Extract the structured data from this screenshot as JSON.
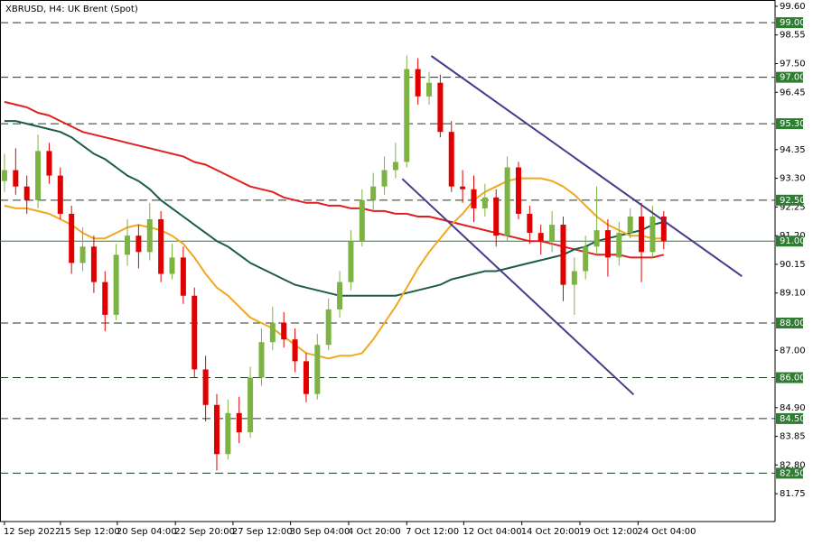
{
  "chart_data": {
    "type": "candlestick",
    "title": "XBRUSD, H4:  UK Brent (Spot)",
    "x": [
      0,
      1,
      2,
      3,
      4,
      5,
      6,
      7,
      8,
      9,
      10,
      11,
      12,
      13,
      14,
      15,
      16,
      17,
      18,
      19,
      20,
      21,
      22,
      23,
      24,
      25,
      26,
      27,
      28,
      29,
      30,
      31,
      32,
      33,
      34,
      35,
      36,
      37,
      38,
      39,
      40,
      41,
      42,
      43,
      44,
      45,
      46,
      47,
      48,
      49,
      50,
      51,
      52,
      53,
      54,
      55,
      56,
      57,
      58,
      59
    ],
    "open": [
      93.2,
      93.6,
      93.0,
      92.5,
      94.3,
      93.4,
      92.0,
      90.2,
      90.8,
      89.5,
      88.3,
      90.5,
      91.2,
      90.6,
      91.8,
      89.8,
      90.4,
      89.0,
      86.3,
      85.0,
      83.2,
      84.7,
      84.0,
      86.0,
      87.3,
      88.0,
      87.4,
      86.6,
      85.4,
      87.2,
      88.5,
      89.5,
      91.0,
      92.5,
      93.0,
      93.6,
      93.9,
      97.3,
      96.3,
      96.8,
      95.0,
      93.0,
      92.9,
      92.2,
      92.6,
      91.2,
      93.7,
      92.0,
      91.3,
      91.0,
      91.6,
      89.4,
      89.9,
      90.8,
      91.4,
      90.4,
      91.3,
      91.9,
      90.6,
      91.9
    ],
    "high": [
      94.2,
      94.4,
      93.4,
      94.9,
      94.6,
      93.7,
      92.3,
      91.5,
      91.2,
      89.9,
      90.9,
      91.8,
      91.6,
      92.4,
      92.1,
      90.9,
      90.8,
      89.3,
      86.8,
      85.4,
      85.2,
      85.3,
      86.4,
      87.8,
      88.6,
      88.4,
      87.8,
      86.9,
      87.6,
      88.9,
      89.9,
      91.4,
      92.9,
      93.5,
      94.1,
      94.6,
      97.8,
      97.7,
      97.2,
      97.1,
      95.4,
      93.6,
      93.4,
      93.1,
      92.9,
      94.1,
      93.9,
      92.3,
      91.6,
      92.1,
      91.9,
      90.4,
      91.2,
      93.0,
      91.8,
      91.7,
      92.2,
      92.4,
      92.3,
      92.1
    ],
    "low": [
      92.8,
      92.7,
      92.0,
      92.2,
      93.1,
      91.8,
      89.8,
      89.9,
      89.1,
      87.7,
      88.1,
      90.1,
      90.0,
      90.3,
      89.5,
      89.6,
      88.7,
      86.0,
      84.4,
      82.6,
      83.0,
      83.6,
      83.8,
      85.7,
      87.0,
      87.1,
      86.2,
      85.1,
      85.2,
      87.0,
      88.2,
      89.2,
      90.8,
      92.1,
      92.7,
      93.3,
      93.7,
      96.0,
      96.0,
      94.8,
      92.8,
      92.4,
      91.7,
      91.9,
      90.8,
      91.0,
      91.8,
      90.9,
      90.5,
      90.6,
      88.8,
      88.3,
      89.6,
      90.5,
      89.7,
      90.1,
      91.1,
      89.5,
      90.4,
      90.7
    ],
    "close": [
      93.6,
      93.0,
      92.5,
      94.3,
      93.4,
      92.0,
      90.2,
      90.8,
      89.5,
      88.3,
      90.5,
      91.2,
      90.6,
      91.8,
      89.8,
      90.4,
      89.0,
      86.3,
      85.0,
      83.2,
      84.7,
      84.0,
      86.0,
      87.3,
      88.0,
      87.4,
      86.6,
      85.4,
      87.2,
      88.5,
      89.5,
      91.0,
      92.5,
      93.0,
      93.6,
      93.9,
      97.3,
      96.3,
      96.8,
      95.0,
      93.0,
      92.9,
      92.2,
      92.6,
      91.2,
      93.7,
      92.0,
      91.3,
      91.0,
      91.6,
      89.4,
      89.9,
      90.8,
      91.4,
      90.4,
      91.3,
      91.9,
      90.6,
      91.9,
      91.0
    ],
    "up_color": "#7cb342",
    "down_color": "#e00000",
    "series": [
      {
        "color": "#e02020",
        "values": [
          96.1,
          96.0,
          95.9,
          95.7,
          95.6,
          95.4,
          95.2,
          95.0,
          94.9,
          94.8,
          94.7,
          94.6,
          94.5,
          94.4,
          94.3,
          94.2,
          94.1,
          93.9,
          93.8,
          93.6,
          93.4,
          93.2,
          93.0,
          92.9,
          92.8,
          92.6,
          92.5,
          92.4,
          92.4,
          92.3,
          92.3,
          92.2,
          92.2,
          92.1,
          92.1,
          92.0,
          92.0,
          91.9,
          91.9,
          91.8,
          91.7,
          91.6,
          91.5,
          91.4,
          91.3,
          91.2,
          91.1,
          91.0,
          91.0,
          90.9,
          90.8,
          90.7,
          90.6,
          90.5,
          90.5,
          90.5,
          90.4,
          90.4,
          90.4,
          90.5
        ]
      },
      {
        "color": "#1b5e45",
        "values": [
          95.4,
          95.4,
          95.3,
          95.2,
          95.1,
          95.0,
          94.8,
          94.5,
          94.2,
          94.0,
          93.7,
          93.4,
          93.2,
          92.9,
          92.5,
          92.2,
          91.9,
          91.6,
          91.3,
          91.0,
          90.8,
          90.5,
          90.2,
          90.0,
          89.8,
          89.6,
          89.4,
          89.3,
          89.2,
          89.1,
          89.0,
          89.0,
          89.0,
          89.0,
          89.0,
          89.0,
          89.1,
          89.2,
          89.3,
          89.4,
          89.6,
          89.7,
          89.8,
          89.9,
          89.9,
          90.0,
          90.1,
          90.2,
          90.3,
          90.4,
          90.5,
          90.7,
          90.8,
          91.0,
          91.1,
          91.2,
          91.3,
          91.4,
          91.6,
          91.7
        ]
      },
      {
        "color": "#f0a820",
        "values": [
          92.3,
          92.2,
          92.2,
          92.1,
          92.0,
          91.8,
          91.6,
          91.3,
          91.1,
          91.1,
          91.3,
          91.5,
          91.6,
          91.5,
          91.4,
          91.2,
          90.9,
          90.4,
          89.8,
          89.3,
          89.0,
          88.6,
          88.2,
          88.0,
          87.8,
          87.5,
          87.2,
          86.9,
          86.8,
          86.7,
          86.8,
          86.8,
          86.9,
          87.4,
          88.0,
          88.6,
          89.3,
          90.0,
          90.6,
          91.1,
          91.6,
          92.0,
          92.5,
          92.8,
          93.0,
          93.2,
          93.3,
          93.3,
          93.3,
          93.2,
          93.0,
          92.7,
          92.3,
          91.9,
          91.6,
          91.4,
          91.2,
          91.2,
          91.1,
          91.1
        ]
      }
    ],
    "trendlines": [
      {
        "color": "#4a3a8c",
        "x": [
          38.2,
          66.0
        ],
        "y": [
          97.78,
          89.71
        ]
      },
      {
        "color": "#4a3a8c",
        "x": [
          35.6,
          56.3
        ],
        "y": [
          93.28,
          85.38
        ]
      }
    ],
    "xlim": [
      -0.4,
      68.96
    ],
    "xticks": [
      {
        "value": 0,
        "label": "12 Sep 2022"
      },
      {
        "value": 5.01,
        "label": "15 Sep 12:00"
      },
      {
        "value": 10.1,
        "label": "20 Sep 04:00"
      },
      {
        "value": 15.3,
        "label": "22 Sep 20:00"
      },
      {
        "value": 20.45,
        "label": "27 Sep 12:00"
      },
      {
        "value": 25.6,
        "label": "30 Sep 04:00"
      },
      {
        "value": 30.8,
        "label": "4 Oct 20:00"
      },
      {
        "value": 36.0,
        "label": "7 Oct 12:00"
      },
      {
        "value": 41.1,
        "label": "12 Oct 04:00"
      },
      {
        "value": 46.3,
        "label": "14 Oct 20:00"
      },
      {
        "value": 51.5,
        "label": "19 Oct 12:00"
      },
      {
        "value": 56.7,
        "label": "24 Oct 04:00"
      }
    ],
    "ylim": [
      80.73,
      99.83
    ],
    "yticks": [
      {
        "value": 99.6,
        "label": "99.60"
      },
      {
        "value": 98.55,
        "label": "98.55"
      },
      {
        "value": 97.5,
        "label": "97.50"
      },
      {
        "value": 96.45,
        "label": "96.45"
      },
      {
        "value": 94.35,
        "label": "94.35"
      },
      {
        "value": 93.3,
        "label": "93.30"
      },
      {
        "value": 92.25,
        "label": "92.25"
      },
      {
        "value": 91.2,
        "label": "91.20"
      },
      {
        "value": 90.15,
        "label": "90.15"
      },
      {
        "value": 89.1,
        "label": "89.10"
      },
      {
        "value": 87.0,
        "label": "87.00"
      },
      {
        "value": 84.9,
        "label": "84.90"
      },
      {
        "value": 83.85,
        "label": "83.85"
      },
      {
        "value": 82.8,
        "label": "82.80"
      },
      {
        "value": 81.75,
        "label": "81.75"
      }
    ],
    "levels": [
      {
        "value": 99.0,
        "label": "99.00"
      },
      {
        "value": 97.0,
        "label": "97.00"
      },
      {
        "value": 95.3,
        "label": "95.30"
      },
      {
        "value": 92.5,
        "label": "92.50"
      },
      {
        "value": 88.0,
        "label": "88.00"
      },
      {
        "value": 86.0,
        "label": "86.00"
      },
      {
        "value": 84.5,
        "label": "84.50"
      },
      {
        "value": 82.5,
        "label": "82.50"
      }
    ],
    "level_color": "#2e7d32",
    "current_price": {
      "value": 91.0,
      "label": "91.00"
    }
  }
}
